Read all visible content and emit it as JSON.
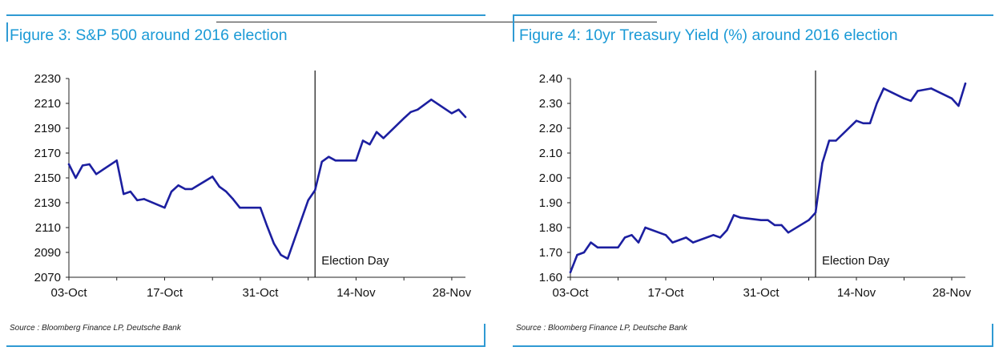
{
  "chart_data": [
    {
      "type": "line",
      "title": "Figure 3: S&P 500 around 2016 election",
      "source": "Source : Bloomberg Finance LP, Deutsche Bank",
      "xlabel": "",
      "ylabel": "",
      "x_ticks": [
        "03-Oct",
        "17-Oct",
        "31-Oct",
        "14-Nov",
        "28-Nov"
      ],
      "y_ticks": [
        "2230",
        "2210",
        "2190",
        "2170",
        "2150",
        "2130",
        "2110",
        "2090",
        "2070"
      ],
      "ylim": [
        2070,
        2230
      ],
      "xlim": [
        "2016-10-03",
        "2016-11-30"
      ],
      "grid": false,
      "line_color": "#1c1fa0",
      "annotations": [
        {
          "x": "2016-11-08",
          "label": "Election Day"
        }
      ],
      "series": [
        {
          "x": [
            "2016-10-03",
            "2016-10-04",
            "2016-10-05",
            "2016-10-06",
            "2016-10-07",
            "2016-10-10",
            "2016-10-11",
            "2016-10-12",
            "2016-10-13",
            "2016-10-14",
            "2016-10-17",
            "2016-10-18",
            "2016-10-19",
            "2016-10-20",
            "2016-10-21",
            "2016-10-24",
            "2016-10-25",
            "2016-10-26",
            "2016-10-27",
            "2016-10-28",
            "2016-10-31",
            "2016-11-01",
            "2016-11-02",
            "2016-11-03",
            "2016-11-04",
            "2016-11-07",
            "2016-11-08",
            "2016-11-09",
            "2016-11-10",
            "2016-11-11",
            "2016-11-14",
            "2016-11-15",
            "2016-11-16",
            "2016-11-17",
            "2016-11-18",
            "2016-11-21",
            "2016-11-22",
            "2016-11-23",
            "2016-11-25",
            "2016-11-28",
            "2016-11-29",
            "2016-11-30"
          ],
          "values": [
            2161,
            2150,
            2160,
            2161,
            2153,
            2164,
            2137,
            2139,
            2132,
            2133,
            2126,
            2139,
            2144,
            2141,
            2141,
            2151,
            2143,
            2139,
            2133,
            2126,
            2126,
            2111,
            2097,
            2088,
            2085,
            2132,
            2140,
            2163,
            2167,
            2164,
            2164,
            2180,
            2177,
            2187,
            2182,
            2198,
            2203,
            2205,
            2213,
            2202,
            2205,
            2199
          ]
        }
      ]
    },
    {
      "type": "line",
      "title": "Figure 4: 10yr Treasury Yield (%) around 2016 election",
      "source": "Source : Bloomberg Finance LP, Deutsche Bank",
      "xlabel": "",
      "ylabel": "",
      "x_ticks": [
        "03-Oct",
        "17-Oct",
        "31-Oct",
        "14-Nov",
        "28-Nov"
      ],
      "y_ticks": [
        "2.40",
        "2.30",
        "2.20",
        "2.10",
        "2.00",
        "1.90",
        "1.80",
        "1.70",
        "1.60"
      ],
      "ylim": [
        1.6,
        2.4
      ],
      "xlim": [
        "2016-10-03",
        "2016-11-30"
      ],
      "grid": false,
      "line_color": "#1c1fa0",
      "annotations": [
        {
          "x": "2016-11-08",
          "label": "Election Day"
        }
      ],
      "series": [
        {
          "x": [
            "2016-10-03",
            "2016-10-04",
            "2016-10-05",
            "2016-10-06",
            "2016-10-07",
            "2016-10-10",
            "2016-10-11",
            "2016-10-12",
            "2016-10-13",
            "2016-10-14",
            "2016-10-17",
            "2016-10-18",
            "2016-10-19",
            "2016-10-20",
            "2016-10-21",
            "2016-10-24",
            "2016-10-25",
            "2016-10-26",
            "2016-10-27",
            "2016-10-28",
            "2016-10-31",
            "2016-11-01",
            "2016-11-02",
            "2016-11-03",
            "2016-11-04",
            "2016-11-07",
            "2016-11-08",
            "2016-11-09",
            "2016-11-10",
            "2016-11-11",
            "2016-11-14",
            "2016-11-15",
            "2016-11-16",
            "2016-11-17",
            "2016-11-18",
            "2016-11-21",
            "2016-11-22",
            "2016-11-23",
            "2016-11-25",
            "2016-11-28",
            "2016-11-29",
            "2016-11-30"
          ],
          "values": [
            1.62,
            1.69,
            1.7,
            1.74,
            1.72,
            1.72,
            1.76,
            1.77,
            1.74,
            1.8,
            1.77,
            1.74,
            1.75,
            1.76,
            1.74,
            1.77,
            1.76,
            1.79,
            1.85,
            1.84,
            1.83,
            1.83,
            1.81,
            1.81,
            1.78,
            1.83,
            1.86,
            2.06,
            2.15,
            2.15,
            2.23,
            2.22,
            2.22,
            2.3,
            2.36,
            2.32,
            2.31,
            2.35,
            2.36,
            2.32,
            2.29,
            2.38
          ]
        }
      ]
    }
  ]
}
